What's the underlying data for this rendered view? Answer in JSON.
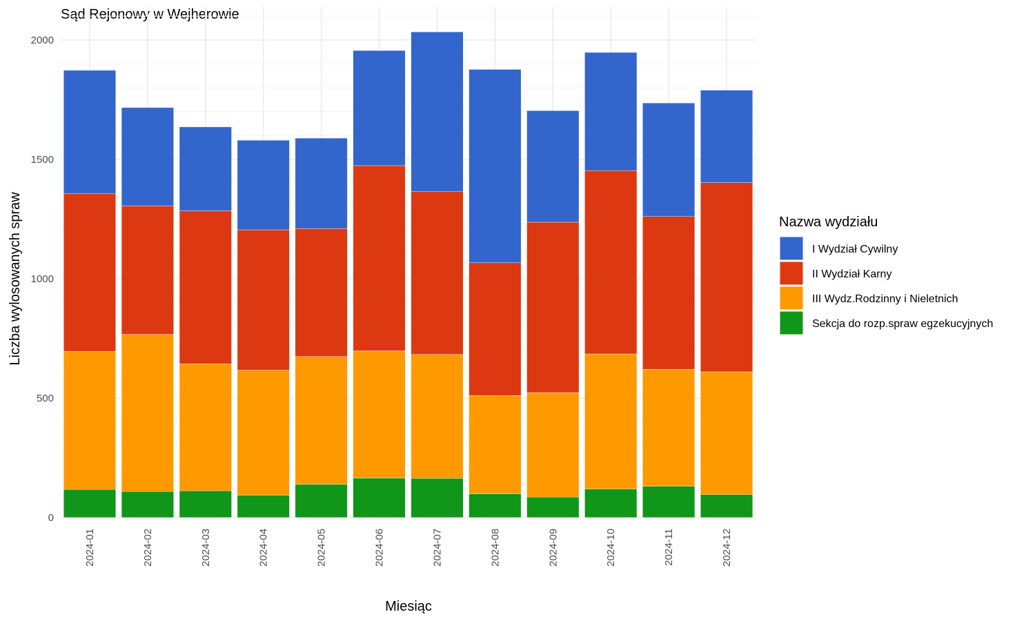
{
  "chart_data": {
    "type": "bar",
    "stacked": true,
    "title": "Sąd Rejonowy w Wejherowie",
    "xlabel": "Miesiąc",
    "ylabel": "Liczba wylosowanych spraw",
    "ylim": [
      0,
      2100
    ],
    "y_ticks": [
      0,
      500,
      1000,
      1500,
      2000
    ],
    "grid": true,
    "legend_position": "right",
    "legend_title": "Nazwa wydziału",
    "categories": [
      "2024-01",
      "2024-02",
      "2024-03",
      "2024-04",
      "2024-05",
      "2024-06",
      "2024-07",
      "2024-08",
      "2024-09",
      "2024-10",
      "2024-11",
      "2024-12"
    ],
    "series": [
      {
        "name": "I Wydział Cywilny",
        "color": "#3366CC",
        "values": [
          517,
          412,
          351,
          375,
          379,
          482,
          669,
          810,
          467,
          495,
          475,
          387
        ]
      },
      {
        "name": "II Wydział Karny",
        "color": "#DC3912",
        "values": [
          660,
          538,
          641,
          588,
          536,
          776,
          682,
          556,
          714,
          768,
          640,
          793
        ]
      },
      {
        "name": "III Wydz.Rodzinny i Nieletnich",
        "color": "#FF9900",
        "values": [
          578,
          658,
          532,
          524,
          535,
          533,
          519,
          412,
          437,
          566,
          490,
          514
        ]
      },
      {
        "name": "Sekcja do rozp.spraw egzekucyjnych",
        "color": "#109618",
        "values": [
          118,
          109,
          112,
          93,
          139,
          165,
          164,
          99,
          86,
          119,
          131,
          96
        ]
      }
    ]
  }
}
